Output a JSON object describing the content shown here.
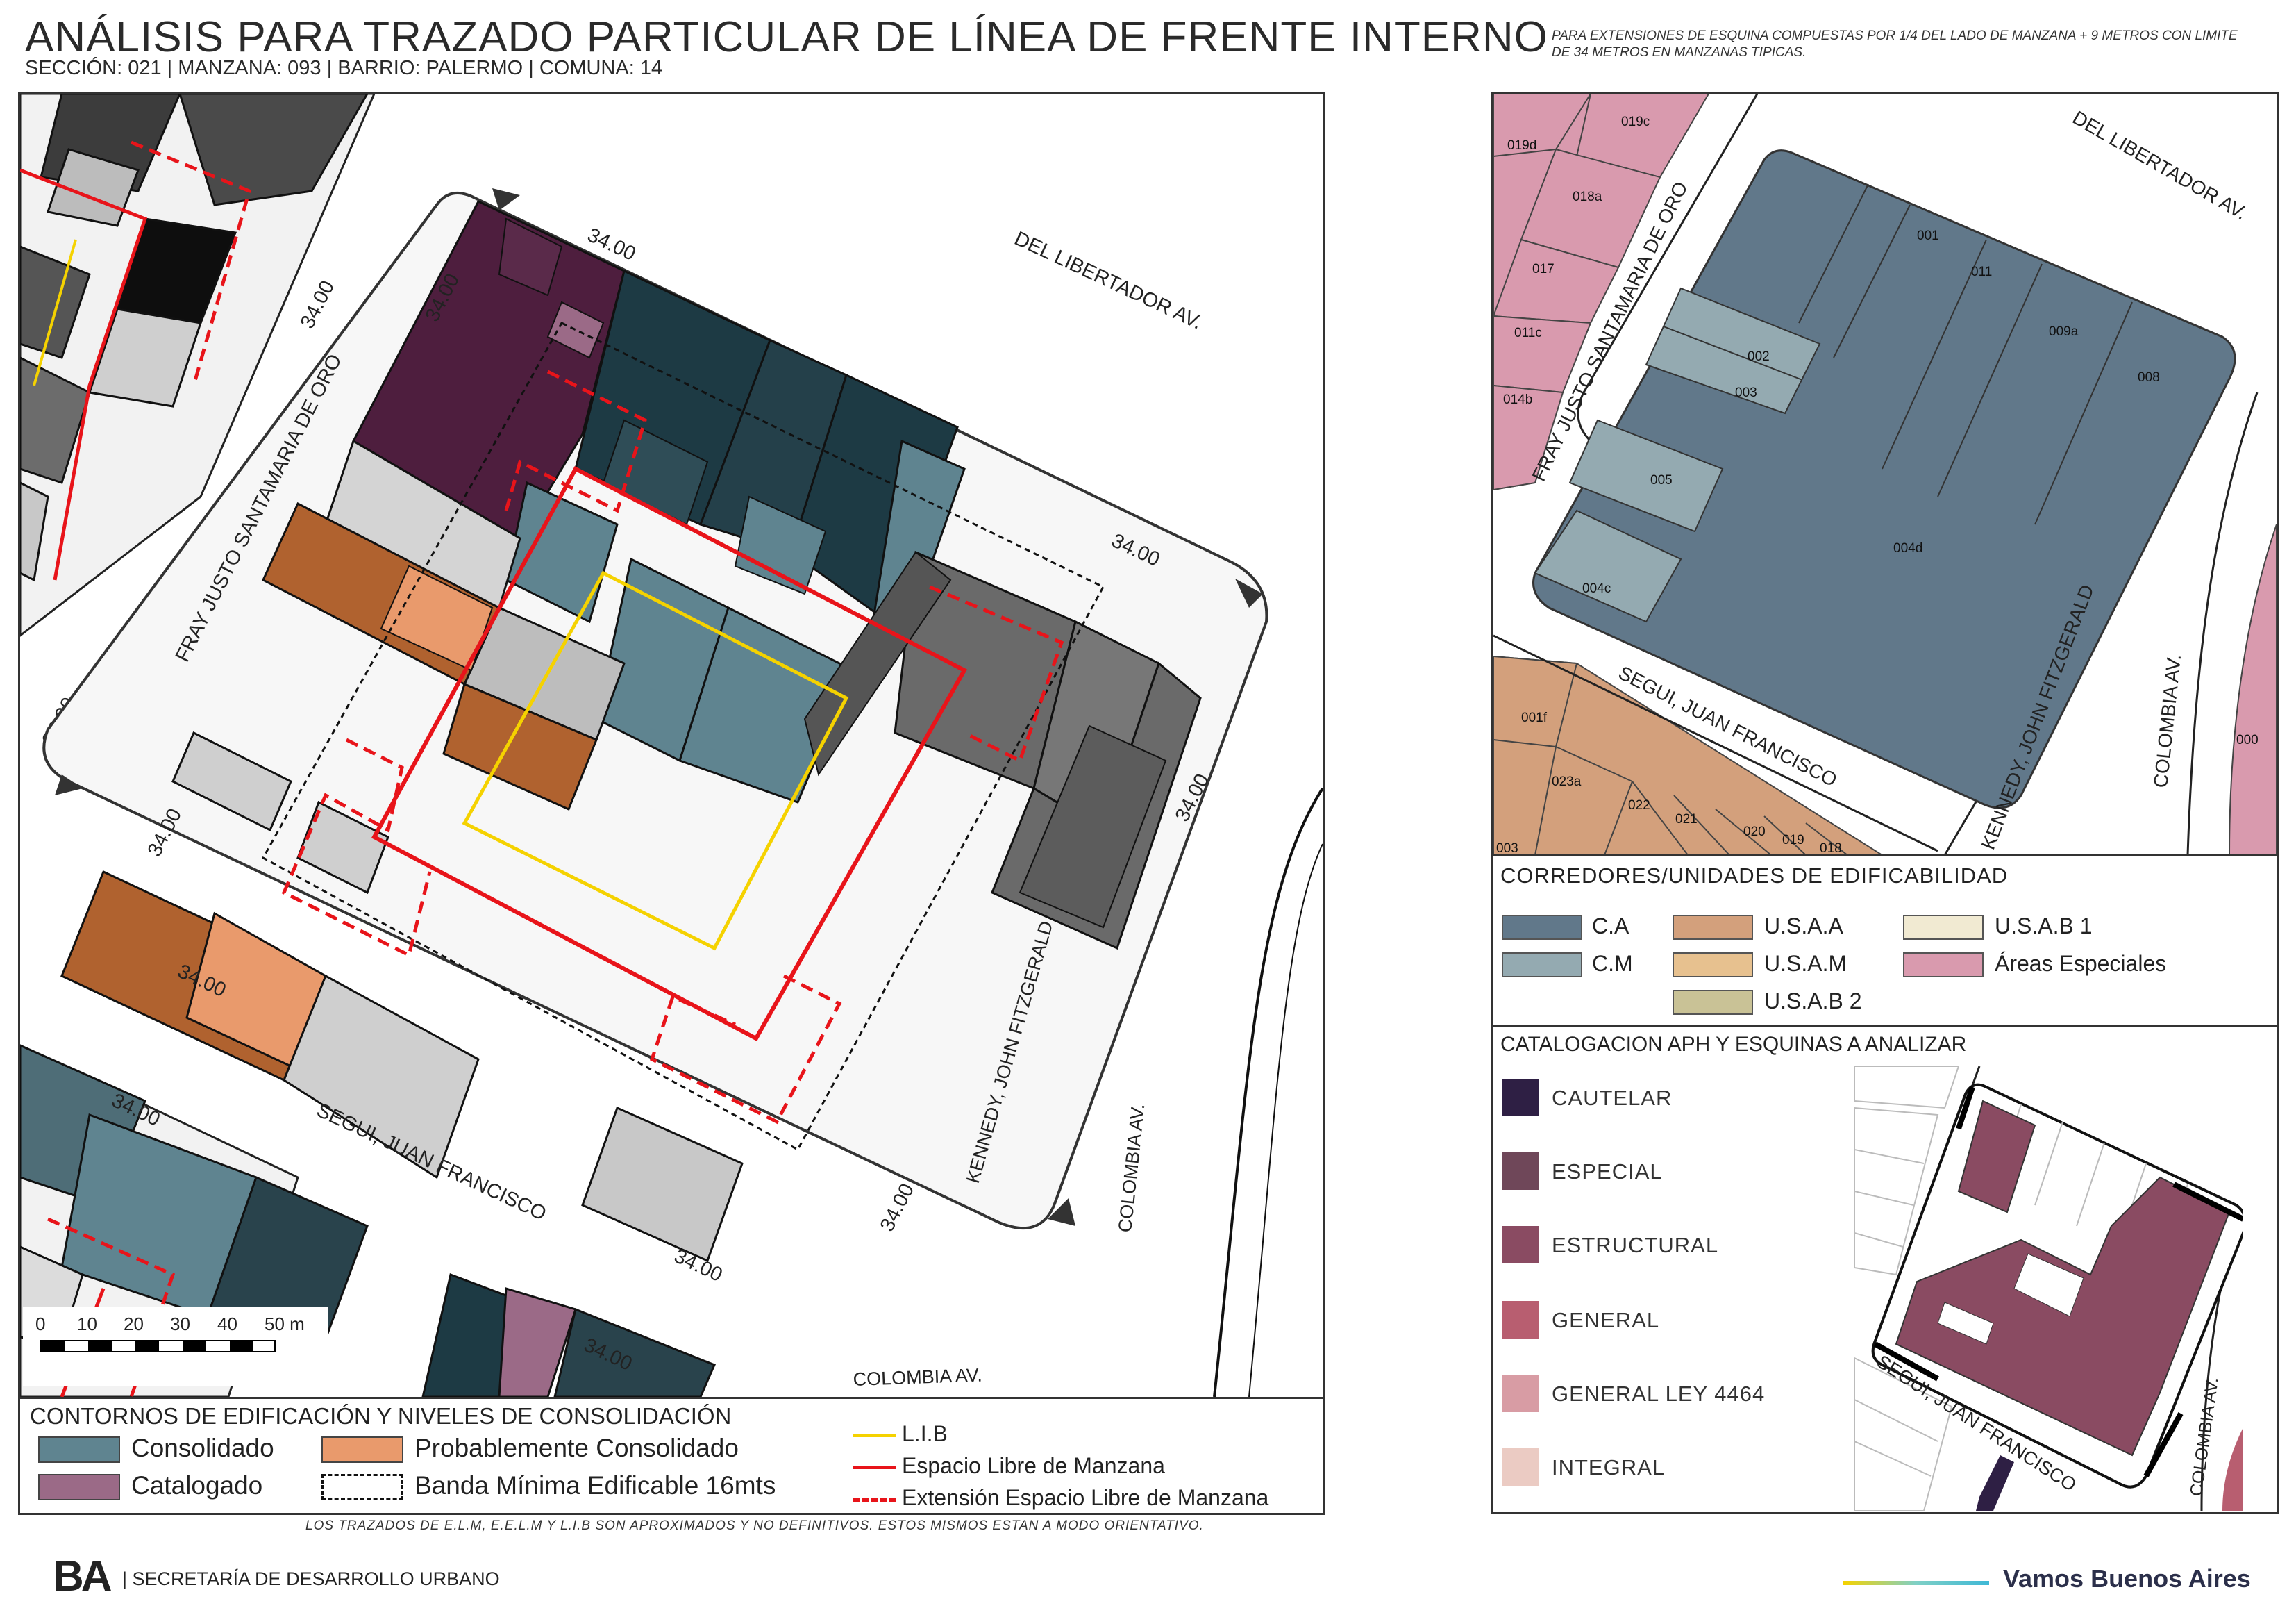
{
  "header": {
    "title": "ANÁLISIS PARA TRAZADO PARTICULAR DE LÍNEA DE FRENTE INTERNO",
    "subtitle": "SECCIÓN: 021 |  MANZANA: 093 | BARRIO: PALERMO | COMUNA: 14",
    "note": "PARA EXTENSIONES DE ESQUINA COMPUESTAS POR 1/4 DEL LADO DE MANZANA + 9 METROS CON LIMITE DE 34 METROS EN MANZANAS TIPICAS."
  },
  "colors": {
    "consolidado": "#5f8490",
    "catalogado": "#9b6a87",
    "probablemente_consolidado": "#e99a6c",
    "lib": "#f5d200",
    "elm": "#e8141a",
    "ca": "#61788a",
    "cm": "#94aab1",
    "usaa": "#d3a07c",
    "usam": "#e7c18f",
    "usab2": "#c9c296",
    "usab1": "#f1ead2",
    "areas_especiales": "#d99aae",
    "cautelar": "#2e1f44",
    "especial": "#6f4759",
    "estructural": "#8a4b62",
    "general": "#b85e70",
    "general_ley": "#d89ca4",
    "integral": "#ebcbc3"
  },
  "main_map": {
    "streets": {
      "del_libertador": "DEL LIBERTADOR AV.",
      "fray_justo": "FRAY JUSTO SANTAMARIA DE ORO",
      "segui": "SEGUI, JUAN FRANCISCO",
      "kennedy": "KENNEDY, JOHN FITZGERALD",
      "colombia": "COLOMBIA AV.",
      "colombia_bottom": "COLOMBIA AV."
    },
    "dimension_label": "34.00",
    "scale": {
      "ticks": [
        "0",
        "10",
        "20",
        "30",
        "40",
        "50 m"
      ]
    }
  },
  "main_legend": {
    "title": "CONTORNOS DE EDIFICACIÓN Y NIVELES DE CONSOLIDACIÓN",
    "items": {
      "consolidado": "Consolidado",
      "catalogado": "Catalogado",
      "probablemente": "Probablemente Consolidado",
      "banda": "Banda Mínima Edificable 16mts",
      "lib": "L.I.B",
      "elm": "Espacio Libre de Manzana",
      "eelm": "Extensión Espacio Libre de Manzana"
    }
  },
  "parcel_map": {
    "streets": {
      "del_libertador": "DEL LIBERTADOR AV.",
      "fray_justo": "FRAY JUSTO SANTAMARIA DE ORO",
      "segui": "SEGUI, JUAN FRANCISCO",
      "kennedy": "KENNEDY, JOHN FITZGERALD",
      "colombia": "COLOMBIA AV."
    },
    "parcels": {
      "p001": "001",
      "p011": "011",
      "p009a": "009a",
      "p008": "008",
      "p002": "002",
      "p003": "003",
      "p005": "005",
      "p004d": "004d",
      "p004c": "004c",
      "p019c": "019c",
      "p019d": "019d",
      "p018a": "018a",
      "p017": "017",
      "p011c": "011c",
      "p014b": "014b",
      "p001f": "001f",
      "p023a": "023a",
      "p022": "022",
      "p021": "021",
      "p020": "020",
      "p019": "019",
      "p018": "018",
      "p003b": "003",
      "p000": "000"
    }
  },
  "corredores_legend": {
    "title": "CORREDORES/UNIDADES DE EDIFICABILIDAD",
    "items": {
      "ca": "C.A",
      "cm": "C.M",
      "usaa": "U.S.A.A",
      "usam": "U.S.A.M",
      "usab2": "U.S.A.B 2",
      "usab1": "U.S.A.B 1",
      "areas": "Áreas Especiales"
    }
  },
  "aph_legend": {
    "title": "CATALOGACION APH Y ESQUINAS A ANALIZAR",
    "items": {
      "cautelar": "CAUTELAR",
      "especial": "ESPECIAL",
      "estructural": "ESTRUCTURAL",
      "general": "GENERAL",
      "general_ley": "GENERAL LEY 4464",
      "integral": "INTEGRAL"
    },
    "map_streets": {
      "segui": "SEGUI, JUAN FRANCISCO",
      "colombia": "COLOMBIA AV."
    }
  },
  "footer": {
    "disclaimer": "LOS TRAZADOS DE E.L.M, E.E.L.M Y L.I.B SON APROXIMADOS Y NO DEFINITIVOS. ESTOS MISMOS ESTAN A MODO ORIENTATIVO.",
    "logo": "BA",
    "org": "| SECRETARÍA DE DESARROLLO URBANO",
    "slogan": "Vamos Buenos Aires"
  }
}
